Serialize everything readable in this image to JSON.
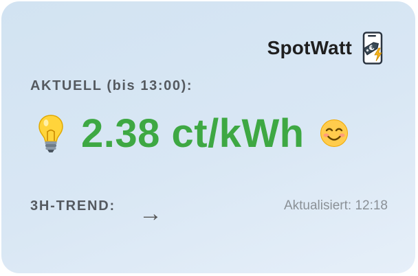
{
  "brand": {
    "name": "SpotWatt",
    "logo_icon": "phone-euro-lightning-icon"
  },
  "current": {
    "label": "AKTUELL (bis 13:00):",
    "price": "2.38 ct/kWh",
    "price_color": "#3ea843",
    "leading_icon": "lightbulb-icon",
    "mood_icon": "smiling-face-icon"
  },
  "trend": {
    "label": "3H-TREND:",
    "arrow": "→",
    "arrow_icon": "right-arrow-icon"
  },
  "updated": {
    "text": "Aktualisiert: 12:18"
  }
}
